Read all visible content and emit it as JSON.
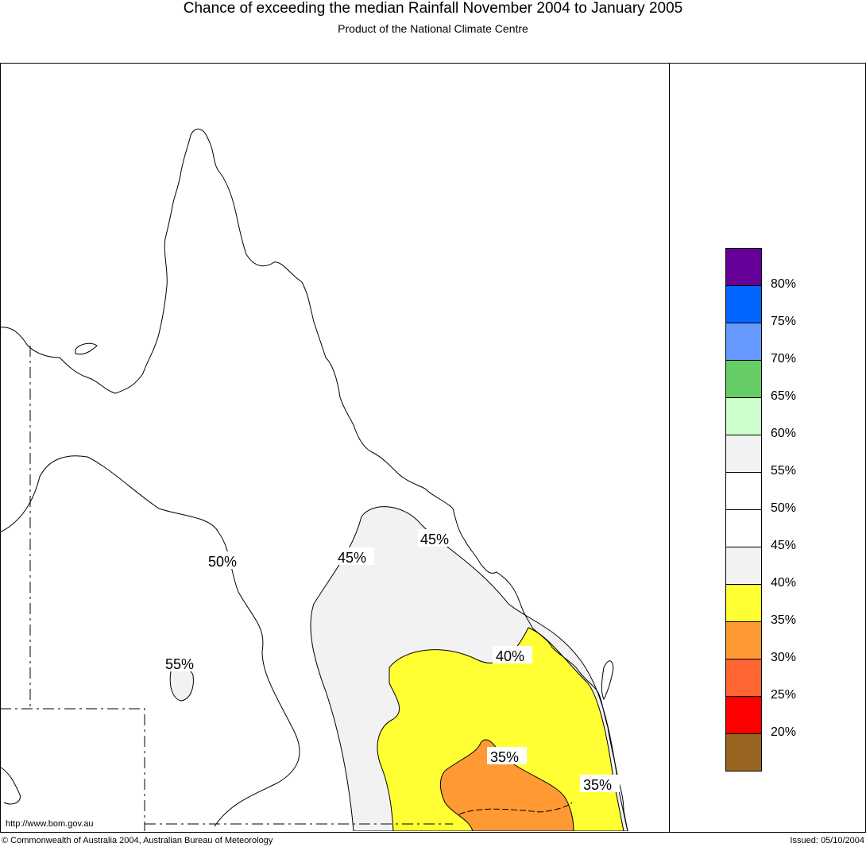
{
  "header": {
    "title": "Chance of exceeding the median Rainfall November 2004 to January 2005",
    "subtitle": "Product of the National Climate Centre"
  },
  "footer": {
    "url": "http://www.bom.gov.au",
    "copyright": "© Commonwealth of Australia 2004, Australian Bureau of Meteorology",
    "issued": "Issued: 05/10/2004"
  },
  "map_labels": {
    "p50": "50%",
    "p55": "55%",
    "p45a": "45%",
    "p45b": "45%",
    "p40": "40%",
    "p35a": "35%",
    "p35b": "35%"
  },
  "legend": {
    "colors": [
      "#660099",
      "#0066ff",
      "#6699ff",
      "#66cc66",
      "#ccffcc",
      "#f2f2f2",
      "#ffffff",
      "#ffffff",
      "#f2f2f2",
      "#ffff33",
      "#ff9933",
      "#ff6633",
      "#ff0000",
      "#996622"
    ],
    "labels": [
      "80%",
      "75%",
      "70%",
      "65%",
      "60%",
      "55%",
      "50%",
      "45%",
      "40%",
      "35%",
      "30%",
      "25%",
      "20%"
    ]
  }
}
